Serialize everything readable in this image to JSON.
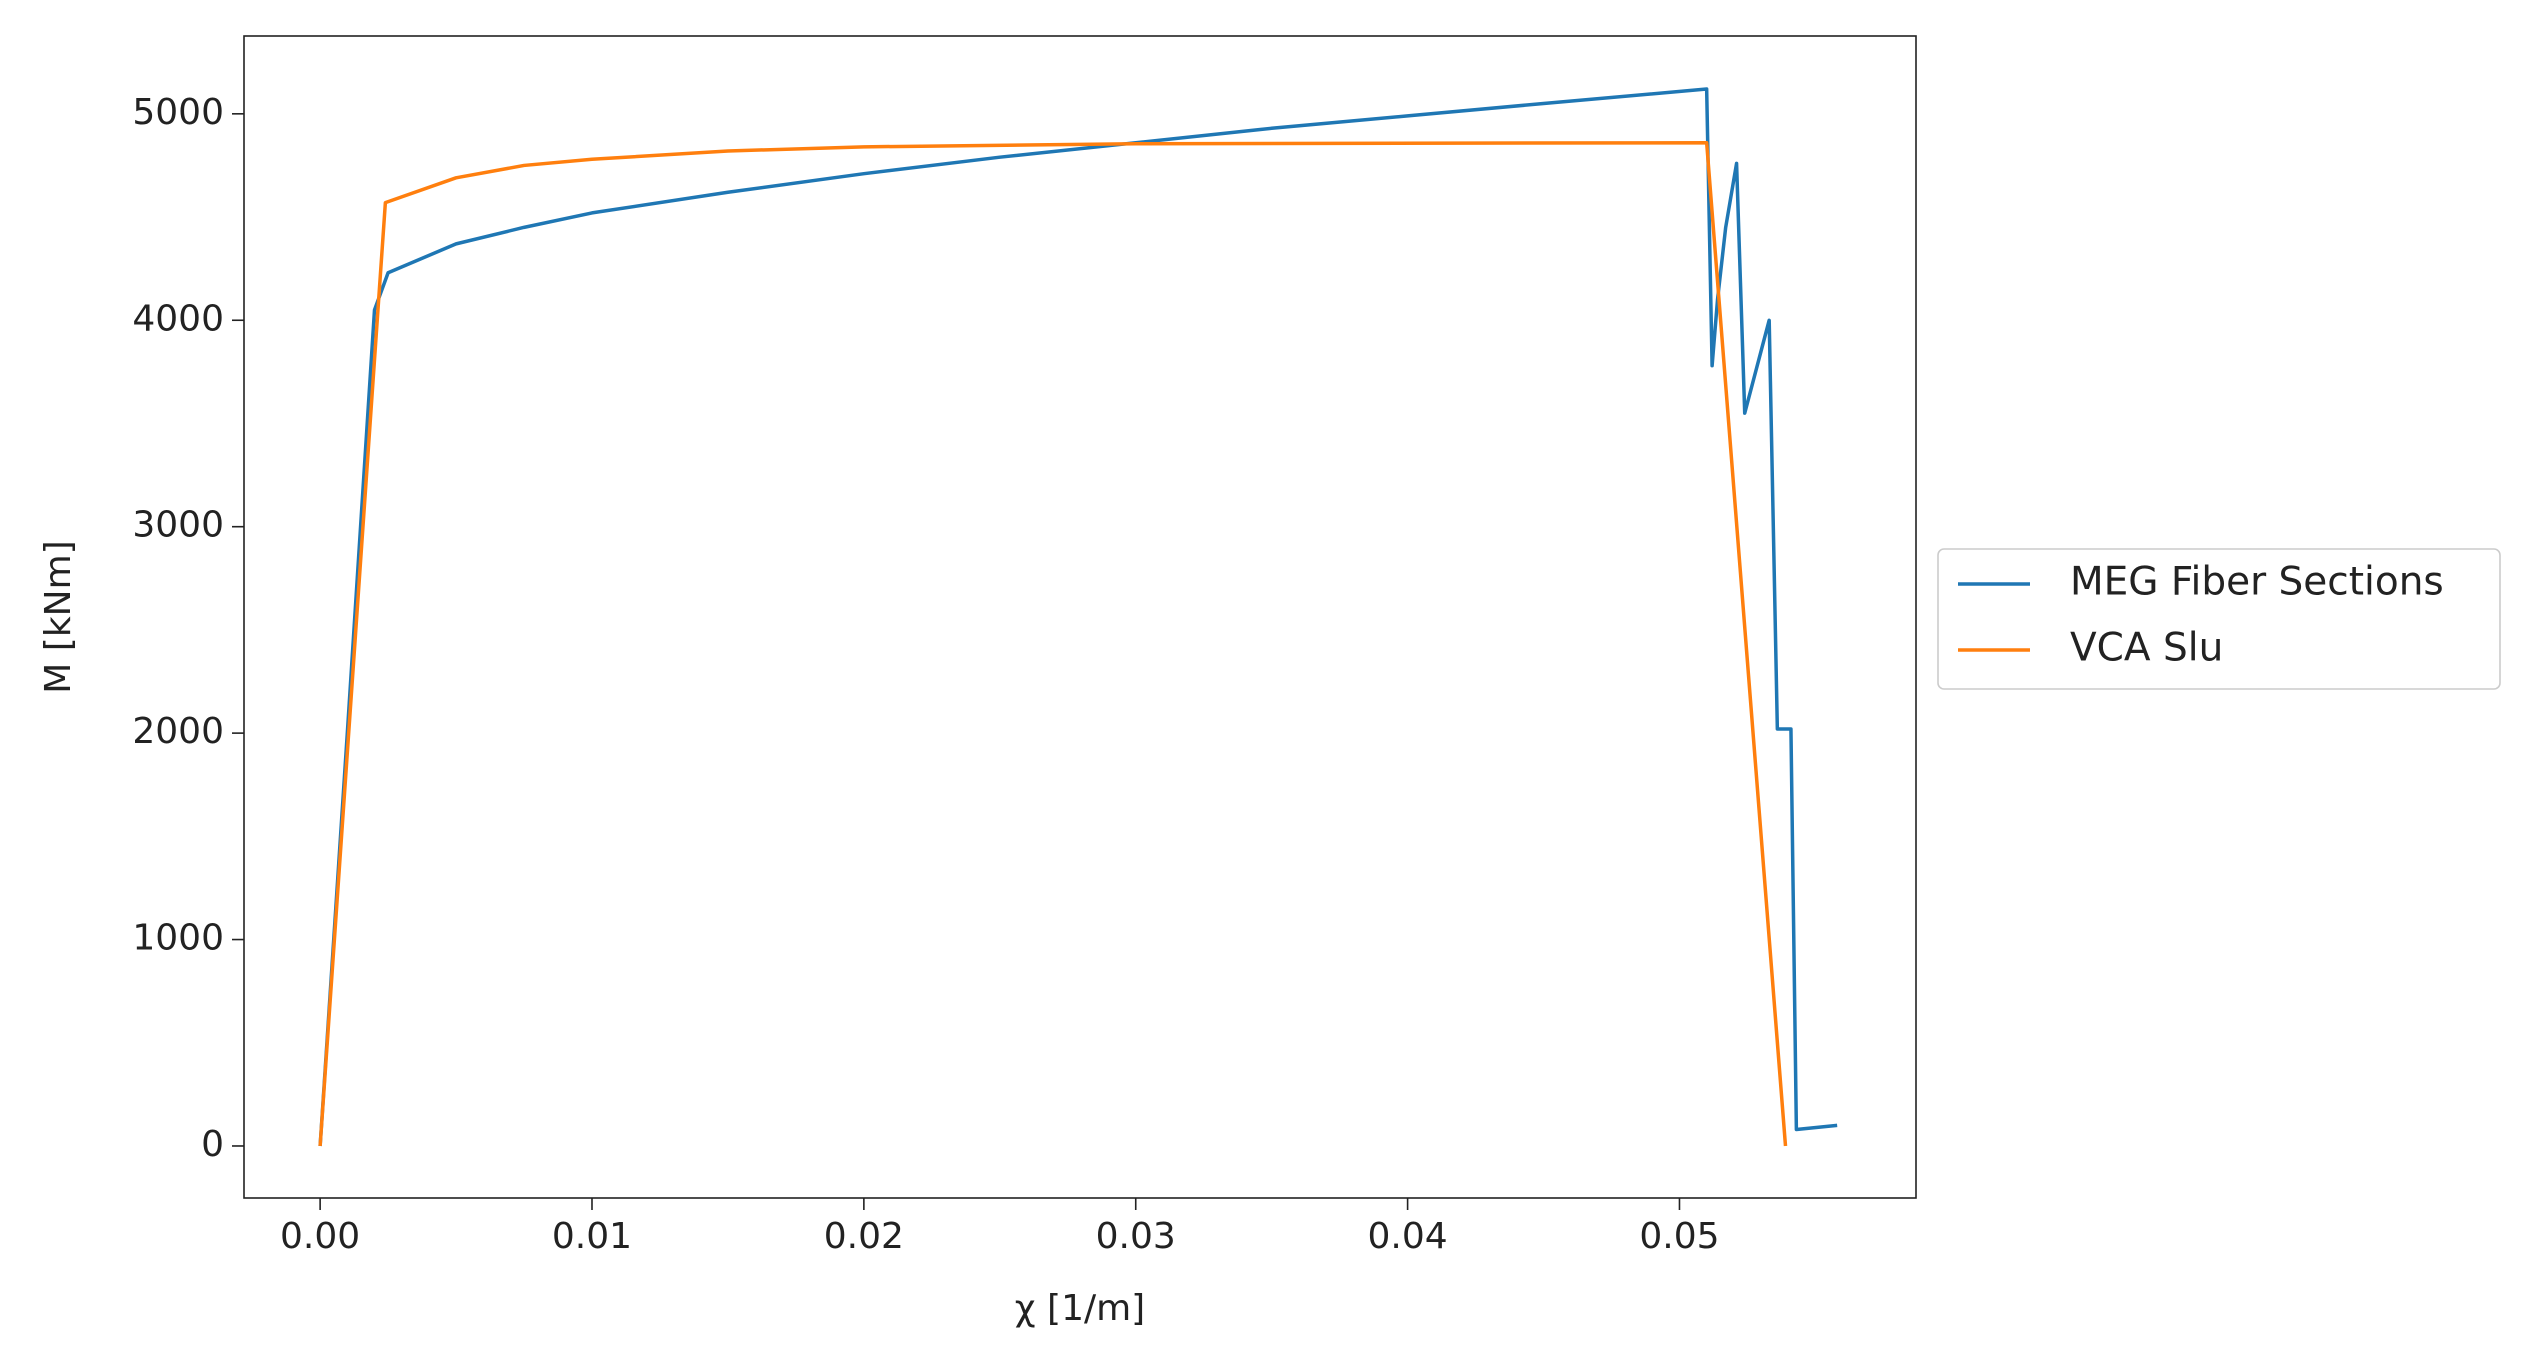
{
  "chart_data": {
    "type": "line",
    "xlabel": "χ [1/m]",
    "ylabel": "M [kNm]",
    "xlim": [
      -0.0028,
      0.0587
    ],
    "ylim": [
      -252,
      5377
    ],
    "xticks": [
      {
        "value": 0,
        "label": "0.00"
      },
      0.01,
      0.02,
      0.03,
      0.04,
      0.05
    ],
    "yticks": [
      0,
      1000,
      2000,
      3000,
      4000,
      5000
    ],
    "grid": false,
    "legend": "outside right",
    "series": [
      {
        "name": "MEG Fiber Sections",
        "color": "#1f77b4",
        "x": [
          0,
          0.001,
          0.002,
          0.0025,
          0.005,
          0.0075,
          0.01,
          0.015,
          0.02,
          0.025,
          0.03,
          0.035,
          0.04,
          0.045,
          0.051,
          0.0512,
          0.0514,
          0.0517,
          0.0521,
          0.0524,
          0.0533,
          0.0536,
          0.0541,
          0.0543,
          0.0558
        ],
        "values": [
          0,
          2000,
          4050,
          4230,
          4370,
          4450,
          4520,
          4620,
          4710,
          4790,
          4860,
          4930,
          4990,
          5050,
          5120,
          3780,
          4100,
          4450,
          4760,
          3550,
          4000,
          2020,
          2020,
          80,
          100
        ]
      },
      {
        "name": "VCA Slu",
        "color": "#ff7f0e",
        "x": [
          0,
          0.0024,
          0.005,
          0.0075,
          0.01,
          0.015,
          0.02,
          0.03,
          0.051,
          0.0539
        ],
        "values": [
          0,
          4570,
          4690,
          4750,
          4780,
          4820,
          4840,
          4855,
          4860,
          0
        ]
      }
    ]
  }
}
